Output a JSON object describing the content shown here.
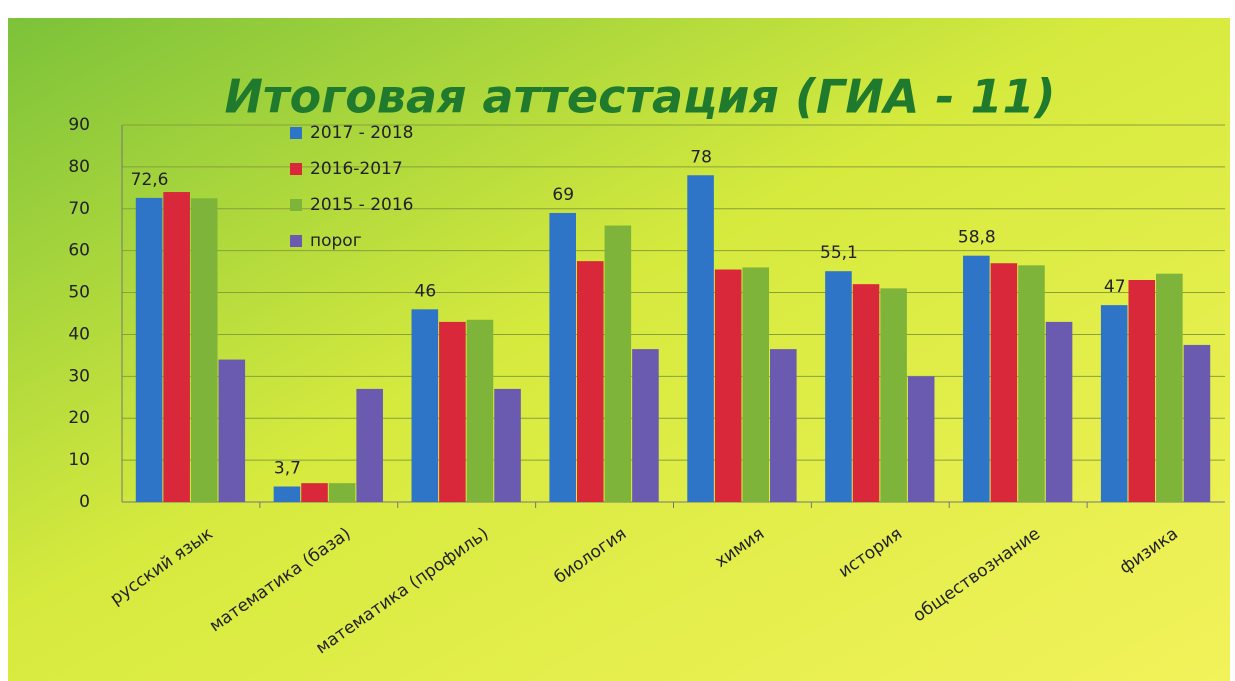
{
  "chart_data": {
    "type": "bar",
    "title": "Итоговая аттестация (ГИА - 11)",
    "categories": [
      "русский язык",
      "математика (база)",
      "математика (профиль)",
      "биология",
      "химия",
      "история",
      "обществознание",
      "физика"
    ],
    "series": [
      {
        "name": "2017 - 2018",
        "color": "#2e75c8",
        "values": [
          72.6,
          3.7,
          46,
          69,
          78,
          55.1,
          58.8,
          47
        ],
        "value_labels": [
          "72,6",
          "3,7",
          "46",
          "69",
          "78",
          "55,1",
          "58,8",
          "47"
        ]
      },
      {
        "name": "2016-2017",
        "color": "#d8283a",
        "values": [
          74,
          4.5,
          43,
          57.5,
          55.5,
          52,
          57,
          53
        ]
      },
      {
        "name": "2015 - 2016",
        "color": "#7fb43a",
        "values": [
          72.5,
          4.5,
          43.5,
          66,
          56,
          51,
          56.5,
          54.5
        ]
      },
      {
        "name": "порог",
        "color": "#6a5ab0",
        "values": [
          34,
          27,
          27,
          36.5,
          36.5,
          30,
          43,
          37.5
        ]
      }
    ],
    "ylim": [
      0,
      90
    ],
    "yticks": [
      0,
      10,
      20,
      30,
      40,
      50,
      60,
      70,
      80,
      90
    ],
    "grid": true
  }
}
